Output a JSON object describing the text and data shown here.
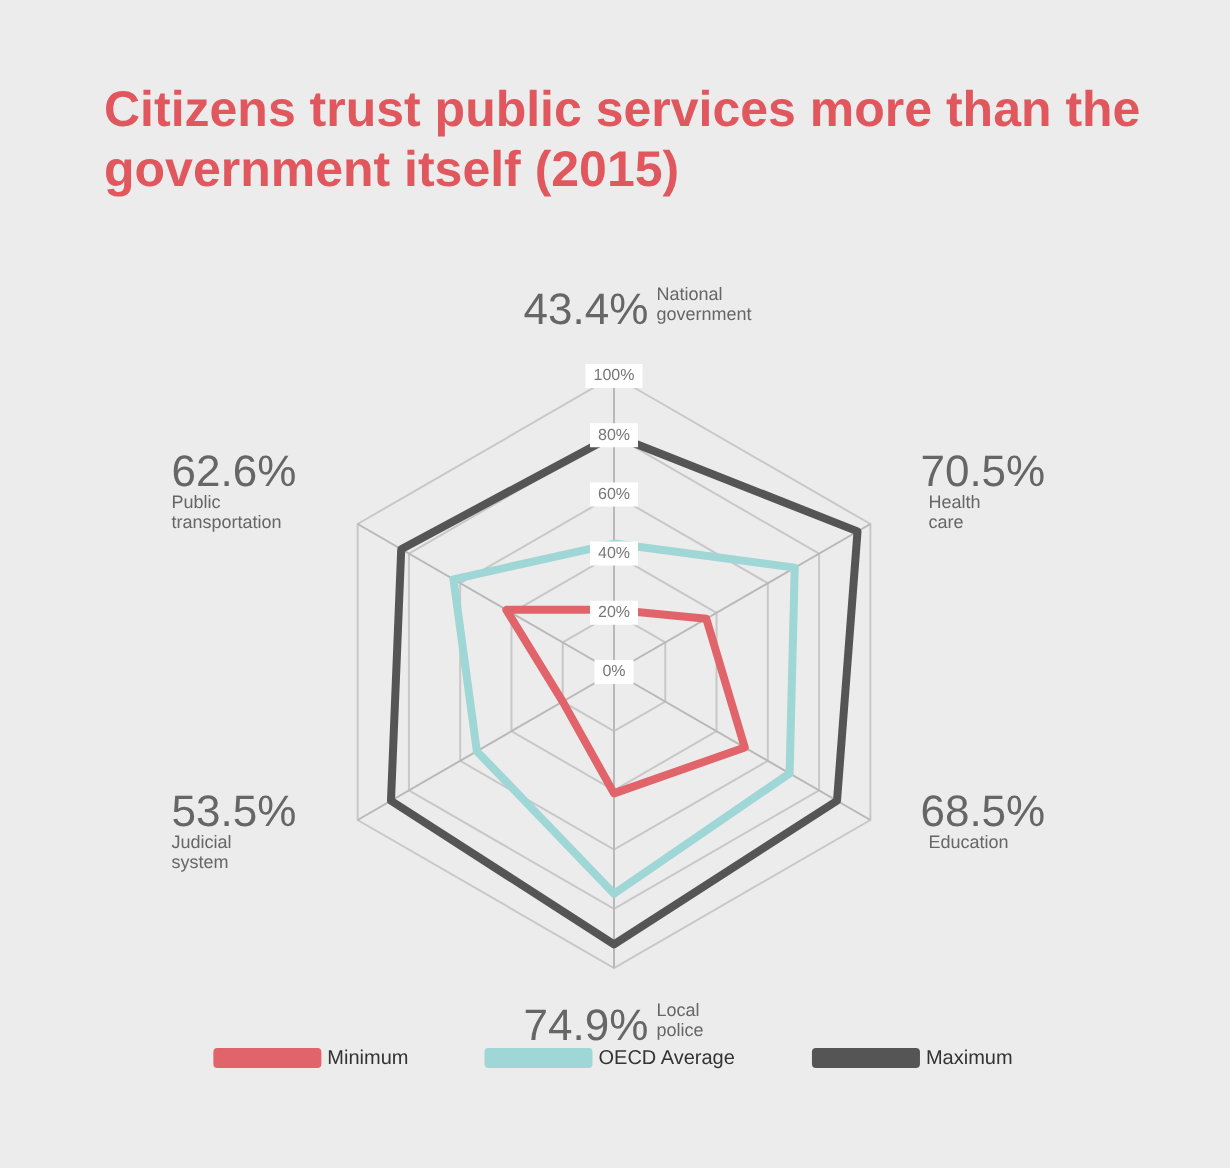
{
  "chart_data": {
    "type": "radar",
    "title": "Citizens trust public services more than the government itself (2015)",
    "categories": [
      "National government",
      "Health care",
      "Education",
      "Local police",
      "Judicial system",
      "Public transportation"
    ],
    "series": [
      {
        "name": "Minimum",
        "color": "#e0646a",
        "values": [
          21,
          36,
          51,
          41,
          20,
          42
        ]
      },
      {
        "name": "OECD Average",
        "color": "#9fd6d6",
        "values": [
          43.4,
          70.5,
          68.5,
          74.9,
          53.5,
          62.6
        ]
      },
      {
        "name": "Maximum",
        "color": "#555555",
        "values": [
          80,
          95,
          87,
          92,
          87,
          83
        ]
      }
    ],
    "ylim": [
      0,
      100
    ],
    "yticks": [
      {
        "value": 0,
        "label": "0%"
      },
      {
        "value": 20,
        "label": "20%"
      },
      {
        "value": 40,
        "label": "40%"
      },
      {
        "value": 60,
        "label": "60%"
      },
      {
        "value": 80,
        "label": "80%"
      },
      {
        "value": 100,
        "label": "100%"
      }
    ],
    "annotations": [
      "43.4%",
      "70.5%",
      "68.5%",
      "74.9%",
      "53.5%",
      "62.6%"
    ],
    "grid": true,
    "legend": "bottom",
    "marker": "none"
  }
}
